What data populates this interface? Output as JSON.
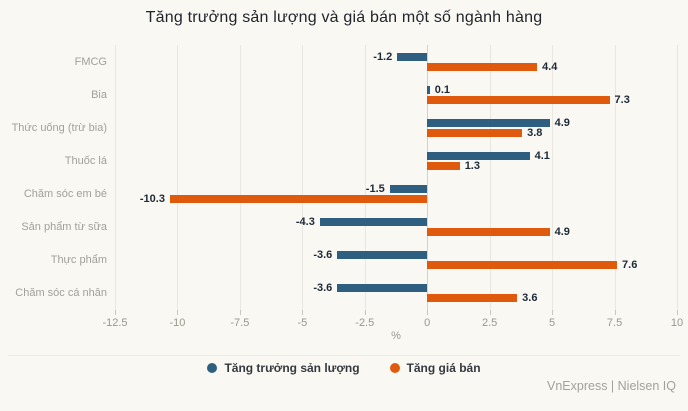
{
  "header": {
    "title": "Tăng trưởng sản lượng và giá bán một số ngành hàng"
  },
  "chart_data": {
    "type": "bar",
    "orientation": "horizontal",
    "title": "Tăng trưởng sản lượng và giá bán một số ngành hàng",
    "categories": [
      "FMCG",
      "Bia",
      "Thức uống (trừ bia)",
      "Thuốc lá",
      "Chăm sóc em bé",
      "Sản phẩm từ sữa",
      "Thực phẩm",
      "Chăm sóc cá nhân"
    ],
    "series": [
      {
        "name": "Tăng trưởng sản lượng",
        "color": "#2e5e80",
        "values": [
          -1.2,
          0.1,
          4.9,
          4.1,
          -1.5,
          -4.3,
          -3.6,
          -3.6
        ]
      },
      {
        "name": "Tăng giá bán",
        "color": "#e05a0e",
        "values": [
          4.4,
          7.3,
          3.8,
          1.3,
          -10.3,
          4.9,
          7.6,
          3.6
        ]
      }
    ],
    "xlabel": "%",
    "xlim": [
      -12.5,
      10
    ],
    "xticks": [
      -12.5,
      -10,
      -7.5,
      -5,
      -2.5,
      0,
      2.5,
      5,
      7.5,
      10
    ],
    "xtick_labels": [
      "-12.5",
      "-10",
      "-7.5",
      "-5",
      "-2.5",
      "0",
      "2.5",
      "5",
      "7.5",
      "10"
    ],
    "grid": true,
    "legend_position": "bottom",
    "value_labels": true
  },
  "footer": {
    "credit": "VnExpress | Nielsen IQ"
  },
  "colors": {
    "background": "#faf8f2",
    "grid": "#eae7e0",
    "volume_series": "#2e5e80",
    "price_series": "#e05a0e"
  }
}
